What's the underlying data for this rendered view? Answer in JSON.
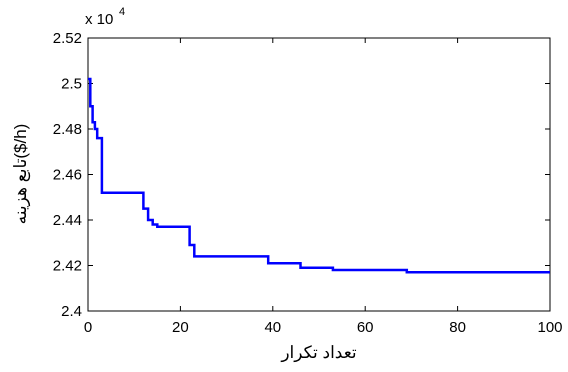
{
  "chart_data": {
    "type": "line",
    "title": "",
    "xlabel": "تعداد تکرار",
    "ylabel": "تابع هزینه($/h)",
    "y_multiplier_label": "x 10",
    "y_multiplier_exponent": "4",
    "xlim": [
      0,
      100
    ],
    "ylim": [
      2.4,
      2.52
    ],
    "grid": false,
    "legend": "none",
    "step": true,
    "x_ticks": [
      0,
      20,
      40,
      60,
      80,
      100
    ],
    "x_tick_labels": [
      "0",
      "20",
      "40",
      "60",
      "80",
      "100"
    ],
    "y_ticks": [
      2.4,
      2.42,
      2.44,
      2.46,
      2.48,
      2.5,
      2.52
    ],
    "y_tick_labels": [
      "2.4",
      "2.42",
      "2.44",
      "2.46",
      "2.48",
      "2.5",
      "2.52"
    ],
    "series": [
      {
        "color": "#0000ff",
        "x": [
          0,
          0.5,
          1,
          1.5,
          2,
          3,
          12,
          13,
          14,
          15,
          22,
          23,
          24,
          39,
          46,
          53,
          69,
          100
        ],
        "y": [
          2.502,
          2.49,
          2.483,
          2.48,
          2.476,
          2.452,
          2.445,
          2.44,
          2.438,
          2.437,
          2.429,
          2.424,
          2.424,
          2.421,
          2.419,
          2.418,
          2.417,
          2.417
        ]
      }
    ]
  }
}
